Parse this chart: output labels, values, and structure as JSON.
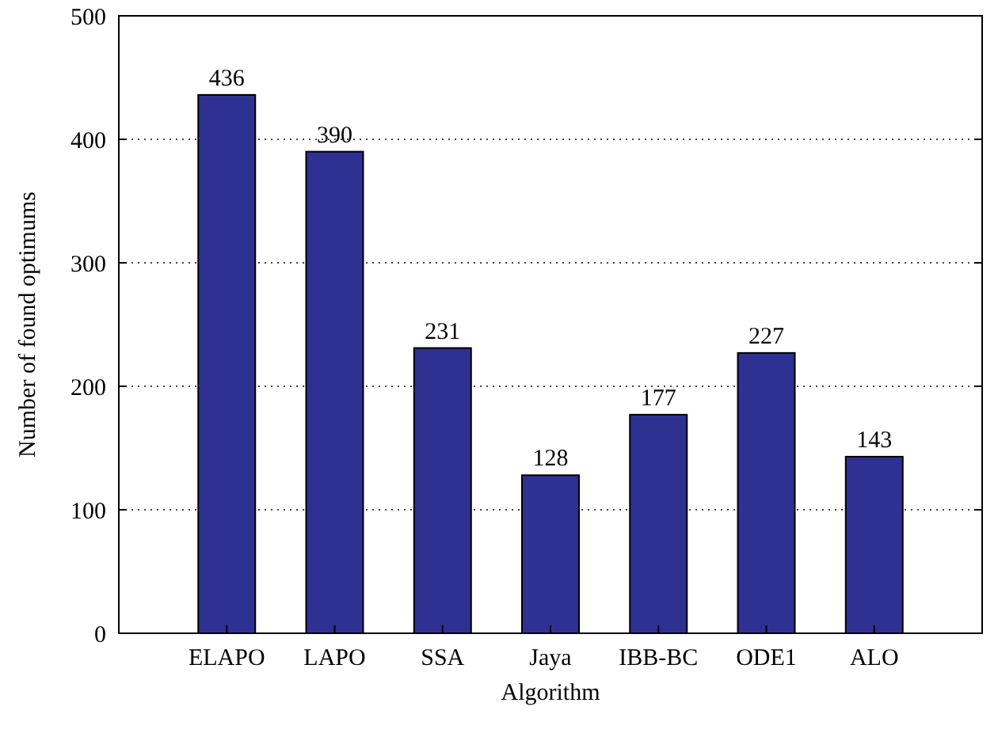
{
  "chart_data": {
    "type": "bar",
    "xlabel": "Algorithm",
    "ylabel": "Number of found optimums",
    "categories": [
      "ELAPO",
      "LAPO",
      "SSA",
      "Jaya",
      "IBB-BC",
      "ODE1",
      "ALO"
    ],
    "values": [
      436,
      390,
      231,
      128,
      177,
      227,
      143
    ],
    "color": "#2e3192",
    "ylim": [
      0,
      500
    ],
    "yticks": [
      0,
      100,
      200,
      300,
      400,
      500
    ],
    "grid": "y",
    "data_labels": true
  }
}
